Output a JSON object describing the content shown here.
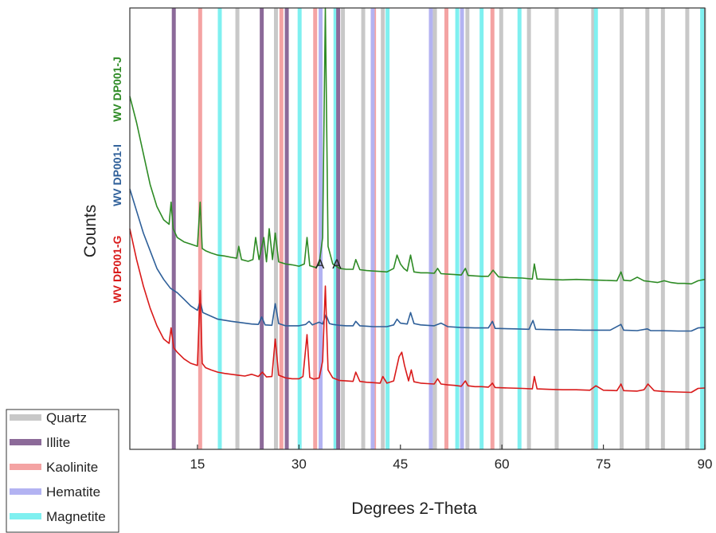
{
  "chart_data": {
    "type": "line",
    "title": "",
    "xlabel": "Degrees 2-Theta",
    "ylabel": "Counts",
    "xlim": [
      5,
      90
    ],
    "xticks": [
      15,
      30,
      45,
      60,
      75,
      90
    ],
    "ylim": [
      0,
      100
    ],
    "y_ticks_shown": false,
    "grid": false,
    "legend_position": "bottom-left-outside",
    "legend": [
      {
        "name": "Quartz",
        "color": "#c8c8c8"
      },
      {
        "name": "Illite",
        "color": "#8c6a99"
      },
      {
        "name": "Kaolinite",
        "color": "#f4a3a3"
      },
      {
        "name": "Hematite",
        "color": "#b3b3f2"
      },
      {
        "name": "Magnetite",
        "color": "#7ff0f0"
      }
    ],
    "phase_lines": {
      "Quartz": [
        20.9,
        26.6,
        36.5,
        39.5,
        42.4,
        50.1,
        54.9,
        59.9,
        64.0,
        68.1,
        73.5,
        77.7,
        81.5,
        83.8,
        87.4,
        89.9
      ],
      "Illite": [
        11.5,
        24.5,
        28.2,
        35.8
      ],
      "Kaolinite": [
        15.4,
        27.4,
        32.4,
        41.1,
        49.5,
        51.8,
        58.6
      ],
      "Hematite": [
        33.2,
        35.7,
        40.9,
        49.5,
        54.1
      ],
      "Magnetite": [
        18.3,
        30.1,
        35.4,
        43.1,
        53.4,
        57.0,
        62.6,
        73.9,
        89.6
      ]
    },
    "annotations": [
      {
        "text": "A",
        "x": 33.1,
        "y": 41
      },
      {
        "text": "A",
        "x": 35.6,
        "y": 41
      }
    ],
    "series": [
      {
        "name": "WV DP001-J",
        "color": "#2e8b25",
        "x": [
          5,
          6,
          7,
          8,
          9,
          10,
          10.8,
          11.1,
          11.4,
          12,
          13,
          14,
          15,
          15.4,
          15.7,
          16.2,
          17,
          18,
          19,
          20,
          20.8,
          21.1,
          21.5,
          22.5,
          23.2,
          23.6,
          24.1,
          24.8,
          25.2,
          25.6,
          26.1,
          26.5,
          27,
          28,
          29,
          30,
          30.8,
          31.2,
          31.6,
          32.5,
          33.0,
          33.5,
          33.9,
          34.3,
          35,
          36,
          37,
          38,
          38.4,
          39,
          40,
          41,
          42,
          43,
          44,
          44.5,
          45,
          45.5,
          46,
          46.5,
          47,
          48,
          49,
          50,
          50.5,
          51,
          52,
          53,
          54,
          54.6,
          55,
          56,
          57,
          58,
          58.7,
          59.5,
          61,
          63,
          64.5,
          64.8,
          65.2,
          67,
          69,
          71,
          73,
          75,
          77,
          77.6,
          78,
          79,
          80,
          81,
          82,
          83,
          84,
          85,
          86,
          87,
          88,
          89,
          90
        ],
        "y": [
          80,
          74,
          67,
          60,
          55,
          52,
          51,
          56,
          50,
          48,
          47,
          46.5,
          46,
          56,
          45.5,
          45,
          44.5,
          44,
          43.8,
          43.5,
          43.3,
          46,
          43,
          42.6,
          43,
          48,
          43,
          48,
          42.5,
          50,
          43,
          49,
          42.5,
          42,
          41.8,
          41.5,
          42,
          48,
          41.6,
          41.2,
          42,
          48,
          100,
          46,
          42,
          41,
          40.8,
          40.8,
          43,
          40.7,
          40.5,
          40.4,
          40.3,
          40.2,
          41,
          44,
          42,
          41,
          40.4,
          44,
          40.2,
          40,
          40,
          39.9,
          41,
          39.8,
          39.7,
          39.6,
          39.5,
          41,
          39.4,
          39.3,
          39.2,
          39.2,
          40.6,
          39.1,
          38.9,
          38.8,
          38.6,
          42,
          38.6,
          38.5,
          38.4,
          38.5,
          38.4,
          38.3,
          38.2,
          40.2,
          38.3,
          38.2,
          39.0,
          38.2,
          38.0,
          37.8,
          38.2,
          37.8,
          37.6,
          37.6,
          37.5,
          38.2,
          38.5
        ]
      },
      {
        "name": "WV DP001-I",
        "color": "#2e5f99",
        "x": [
          5,
          6,
          7,
          8,
          9,
          10,
          11,
          11.5,
          12,
          13,
          14,
          15,
          15.4,
          15.8,
          16.5,
          18,
          20,
          21,
          22,
          23,
          24,
          24.5,
          25,
          26,
          26.5,
          27,
          28,
          30,
          31,
          31.5,
          32,
          33,
          33.5,
          34,
          34.5,
          35,
          36,
          37,
          38,
          38.4,
          39,
          40,
          41,
          42,
          43,
          44,
          44.5,
          45,
          46,
          46.5,
          47,
          48,
          50,
          51,
          52,
          54,
          56,
          58,
          58.6,
          59,
          62,
          64,
          64.6,
          65,
          68,
          70,
          72,
          74,
          76,
          77.6,
          78,
          80,
          81.5,
          82,
          84,
          86,
          88,
          89,
          90
        ],
        "y": [
          59,
          54,
          49,
          45,
          41,
          38.5,
          36.5,
          36,
          35.5,
          34,
          32.5,
          31.5,
          33.5,
          31,
          30.5,
          29.5,
          29,
          28.8,
          28.6,
          28.4,
          28.3,
          30,
          28.2,
          28.1,
          33,
          28.5,
          28,
          28,
          28.3,
          29,
          28.2,
          28.8,
          28.4,
          30.5,
          28.5,
          28.3,
          28.1,
          28,
          28,
          29,
          28,
          27.9,
          27.8,
          27.8,
          27.8,
          28.2,
          29.5,
          28.6,
          28.4,
          31,
          28.5,
          28.2,
          28,
          28.6,
          27.8,
          27.6,
          27.5,
          27.5,
          29,
          27.4,
          27.3,
          27.2,
          29.2,
          27.2,
          27.1,
          27.1,
          27,
          27,
          27,
          28.3,
          27,
          26.9,
          27.3,
          26.9,
          26.9,
          26.8,
          26.8,
          27.5,
          27.6
        ]
      },
      {
        "name": "WV DP001-G",
        "color": "#d91a1a",
        "x": [
          5,
          6,
          7,
          8,
          9,
          10,
          10.8,
          11.1,
          11.5,
          12,
          13,
          14,
          15,
          15.4,
          15.7,
          16.2,
          17,
          18,
          19,
          20,
          21,
          22,
          23,
          24,
          24.6,
          25.2,
          26,
          26.5,
          27,
          28,
          29,
          30,
          30.6,
          31.2,
          31.6,
          32.2,
          33,
          33.5,
          33.9,
          34.3,
          35,
          36,
          37,
          38,
          38.4,
          39,
          40,
          41,
          42,
          42.4,
          43,
          44,
          44.8,
          45.2,
          45.6,
          46.2,
          46.6,
          47,
          48,
          49,
          50,
          50.5,
          51,
          52,
          53,
          54,
          54.6,
          55,
          56,
          57,
          58,
          58.6,
          59,
          61,
          63,
          64.5,
          64.8,
          65.2,
          67,
          69,
          71,
          73,
          73.9,
          75,
          77,
          77.6,
          78,
          80,
          81,
          81.6,
          82.5,
          84,
          86,
          88,
          89,
          90
        ],
        "y": [
          50,
          43,
          37,
          32,
          28,
          25,
          24,
          27.5,
          23,
          22,
          20.5,
          19.5,
          19,
          36,
          19.5,
          18.5,
          18,
          17.5,
          17.2,
          17,
          16.8,
          16.6,
          17,
          16.5,
          17.5,
          16.4,
          16.5,
          25,
          16.8,
          16.2,
          16,
          16,
          16.5,
          26,
          16.3,
          15.9,
          16.2,
          20,
          37,
          18,
          16.2,
          15.6,
          15.5,
          15.4,
          17.5,
          15.4,
          15.2,
          15.1,
          15,
          16.5,
          15,
          15.5,
          21,
          22,
          19,
          15.5,
          18,
          15.3,
          15,
          14.9,
          14.8,
          16,
          14.8,
          14.6,
          14.5,
          14.3,
          15.5,
          14.4,
          14.2,
          14.2,
          14.1,
          15,
          14,
          13.9,
          13.8,
          13.7,
          16.5,
          13.7,
          13.6,
          13.5,
          13.5,
          13.4,
          14.4,
          13.4,
          13.3,
          14.8,
          13.3,
          13.2,
          13.5,
          14.8,
          13.3,
          13.1,
          13.0,
          12.9,
          13.8,
          13.9
        ]
      }
    ]
  }
}
